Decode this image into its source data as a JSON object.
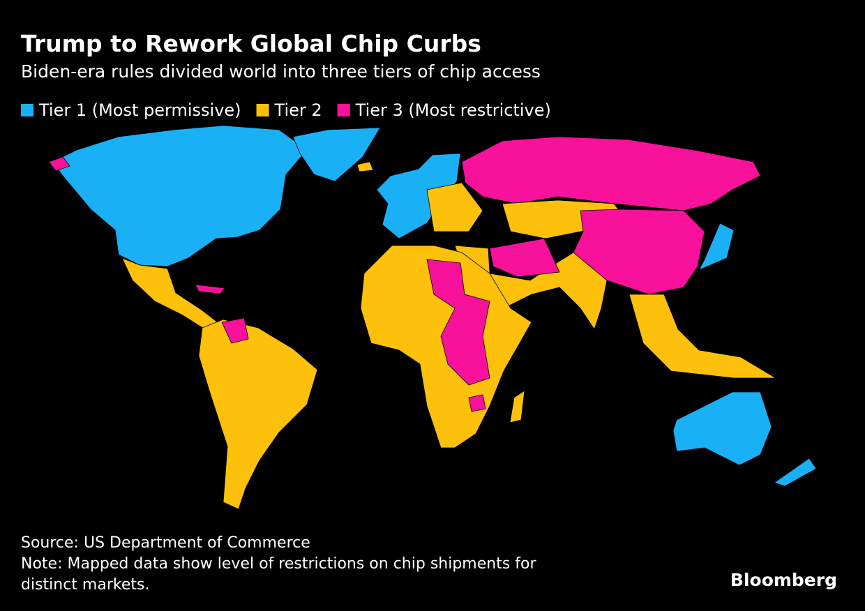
{
  "header": {
    "title": "Trump to Rework Global Chip Curbs",
    "subtitle": "Biden-era rules divided world into three tiers of chip access"
  },
  "legend": [
    {
      "name": "Tier 1 (Most permissive)",
      "color": "#1ab0f5"
    },
    {
      "name": "Tier 2",
      "color": "#fec10b"
    },
    {
      "name": "Tier 3 (Most restrictive)",
      "color": "#f7119b"
    }
  ],
  "footer": {
    "source": "Source: US Department of Commerce",
    "note_line1": "Note: Mapped data show level of restrictions on chip shipments for",
    "note_line2": "distinct markets.",
    "brand": "Bloomberg"
  }
}
